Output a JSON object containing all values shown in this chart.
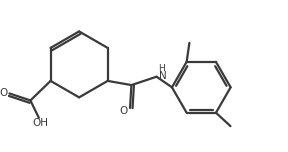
{
  "line_color": "#3a3a3a",
  "bg_color": "#ffffff",
  "lw": 1.6,
  "figsize": [
    2.88,
    1.52
  ],
  "dpi": 100,
  "xlim": [
    0,
    10
  ],
  "ylim": [
    0,
    5.27
  ]
}
